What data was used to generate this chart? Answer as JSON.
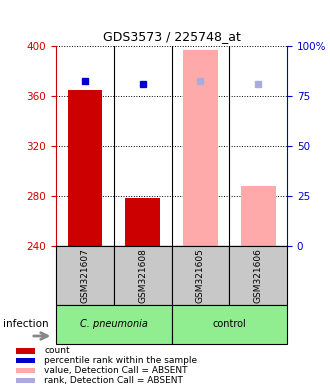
{
  "title": "GDS3573 / 225748_at",
  "samples": [
    "GSM321607",
    "GSM321608",
    "GSM321605",
    "GSM321606"
  ],
  "bar_bg_color": "#c8c8c8",
  "ylim_left": [
    240,
    400
  ],
  "ylim_right": [
    0,
    100
  ],
  "yticks_left": [
    240,
    280,
    320,
    360,
    400
  ],
  "yticks_right": [
    0,
    25,
    50,
    75,
    100
  ],
  "count_values": [
    365,
    278,
    null,
    null
  ],
  "count_color": "#cc0000",
  "percentile_values": [
    372,
    370,
    null,
    null
  ],
  "percentile_color": "#0000cc",
  "absent_value_values": [
    null,
    null,
    397,
    288
  ],
  "absent_value_color": "#ffaaaa",
  "absent_rank_values": [
    null,
    null,
    372,
    370
  ],
  "absent_rank_color": "#aaaadd",
  "legend_items": [
    {
      "label": "count",
      "color": "#cc0000"
    },
    {
      "label": "percentile rank within the sample",
      "color": "#0000cc"
    },
    {
      "label": "value, Detection Call = ABSENT",
      "color": "#ffaaaa"
    },
    {
      "label": "rank, Detection Call = ABSENT",
      "color": "#aaaadd"
    }
  ],
  "cpneumonia_color": "#90ee90",
  "control_color": "#90ee90",
  "left_axis_color": "#cc0000",
  "right_axis_color": "#0000cc",
  "bar_width": 0.6
}
